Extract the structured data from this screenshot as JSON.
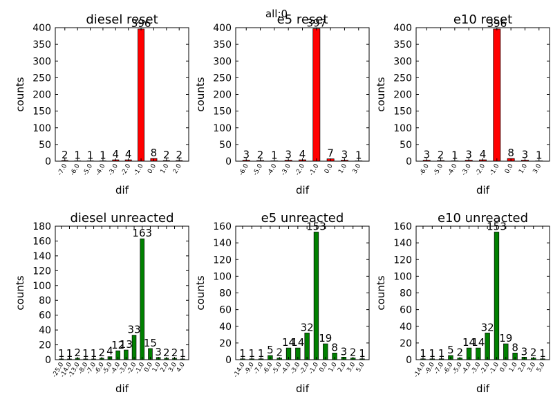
{
  "figure": {
    "suptitle": "all:0"
  },
  "chart_data": [
    {
      "type": "bar",
      "title": "diesel reset",
      "xlabel": "dif",
      "ylabel": "counts",
      "ylim": [
        0,
        400
      ],
      "yticks": [
        0,
        50,
        100,
        150,
        200,
        250,
        300,
        350,
        400
      ],
      "categories": [
        "-7.0",
        "-6.0",
        "-5.0",
        "-4.0",
        "-3.0",
        "-2.0",
        "-1.0",
        "0.0",
        "1.0",
        "2.0"
      ],
      "values": [
        2,
        1,
        1,
        1,
        4,
        4,
        396,
        8,
        2,
        2
      ],
      "bar_color": "#ff0000",
      "grid": false
    },
    {
      "type": "bar",
      "title": "e5 reset",
      "xlabel": "dif",
      "ylabel": "counts",
      "ylim": [
        0,
        400
      ],
      "yticks": [
        0,
        50,
        100,
        150,
        200,
        250,
        300,
        350,
        400
      ],
      "categories": [
        "-6.0",
        "-5.0",
        "-4.0",
        "-3.0",
        "-2.0",
        "-1.0",
        "0.0",
        "1.0",
        "3.0"
      ],
      "values": [
        3,
        2,
        1,
        3,
        4,
        397,
        7,
        3,
        1
      ],
      "bar_color": "#ff0000",
      "grid": false
    },
    {
      "type": "bar",
      "title": "e10 reset",
      "xlabel": "dif",
      "ylabel": "counts",
      "ylim": [
        0,
        400
      ],
      "yticks": [
        0,
        50,
        100,
        150,
        200,
        250,
        300,
        350,
        400
      ],
      "categories": [
        "-6.0",
        "-5.0",
        "-4.0",
        "-3.0",
        "-2.0",
        "-1.0",
        "0.0",
        "1.0",
        "3.0"
      ],
      "values": [
        3,
        2,
        1,
        3,
        4,
        396,
        8,
        3,
        1
      ],
      "bar_color": "#ff0000",
      "grid": false
    },
    {
      "type": "bar",
      "title": "diesel unreacted",
      "xlabel": "dif",
      "ylabel": "counts",
      "ylim": [
        0,
        180
      ],
      "yticks": [
        0,
        20,
        40,
        60,
        80,
        100,
        120,
        140,
        160,
        180
      ],
      "categories": [
        "-25.0",
        "-14.0",
        "-13.0",
        "-8.0",
        "-7.0",
        "-6.0",
        "-5.0",
        "-4.0",
        "-3.0",
        "-2.0",
        "-1.0",
        "0.0",
        "1.0",
        "2.0",
        "3.0",
        "4.0"
      ],
      "values": [
        1,
        1,
        2,
        1,
        1,
        2,
        4,
        12,
        13,
        33,
        163,
        15,
        3,
        2,
        2,
        1
      ],
      "bar_color": "#008000",
      "grid": false
    },
    {
      "type": "bar",
      "title": "e5 unreacted",
      "xlabel": "dif",
      "ylabel": "counts",
      "ylim": [
        0,
        160
      ],
      "yticks": [
        0,
        20,
        40,
        60,
        80,
        100,
        120,
        140,
        160
      ],
      "categories": [
        "-14.0",
        "-9.0",
        "-7.0",
        "-6.0",
        "-5.0",
        "-4.0",
        "-3.0",
        "-2.0",
        "-1.0",
        "0.0",
        "1.0",
        "2.0",
        "3.0",
        "5.0"
      ],
      "values": [
        1,
        1,
        1,
        5,
        2,
        14,
        14,
        32,
        153,
        19,
        8,
        3,
        2,
        1
      ],
      "bar_color": "#008000",
      "grid": false
    },
    {
      "type": "bar",
      "title": "e10 unreacted",
      "xlabel": "dif",
      "ylabel": "counts",
      "ylim": [
        0,
        160
      ],
      "yticks": [
        0,
        20,
        40,
        60,
        80,
        100,
        120,
        140,
        160
      ],
      "categories": [
        "-14.0",
        "-9.0",
        "-7.0",
        "-6.0",
        "-5.0",
        "-4.0",
        "-3.0",
        "-2.0",
        "-1.0",
        "0.0",
        "1.0",
        "2.0",
        "3.0",
        "5.0"
      ],
      "values": [
        1,
        1,
        1,
        5,
        2,
        14,
        14,
        32,
        153,
        19,
        8,
        3,
        2,
        1
      ],
      "bar_color": "#008000",
      "grid": false
    }
  ]
}
